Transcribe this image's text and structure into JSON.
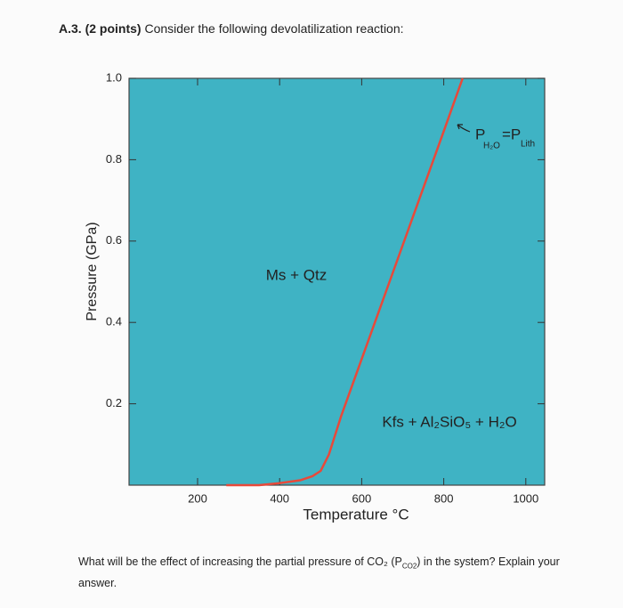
{
  "header": {
    "number": "A.3.",
    "points": "(2 points)",
    "text": "Consider the following devolatilization reaction:"
  },
  "chart_data": {
    "type": "line",
    "x": [
      270,
      350,
      400,
      450,
      480,
      500,
      520,
      550,
      600,
      700,
      800,
      846
    ],
    "series": [
      {
        "color": "#e8493a",
        "values": [
          0,
          0,
          0.005,
          0.012,
          0.022,
          0.035,
          0.075,
          0.17,
          0.31,
          0.59,
          0.87,
          1.0
        ]
      }
    ],
    "xlim": [
      33,
      1046
    ],
    "xticks": [
      200,
      400,
      600,
      800,
      1000
    ],
    "ylim": [
      0,
      1.0
    ],
    "yticks": [
      0.2,
      0.4,
      0.6,
      0.8,
      {
        "value": 1.0,
        "label": "1.0"
      }
    ],
    "xlabel": "Temperature °C",
    "ylabel": "Pressure (GPa)",
    "background": "#3fb3c4",
    "field_labels": [
      "Ms + Qtz",
      "Kfs + Al₂SiO₅ + H₂O"
    ],
    "annotation": {
      "p1": "P",
      "sub1": "H₂O",
      "eq": "=P",
      "sub2": "Lith"
    }
  },
  "question": {
    "before": "What will be the effect of increasing the partial pressure of CO₂ (P",
    "sub": "CO2",
    "after": ") in the system? Explain your answer."
  }
}
